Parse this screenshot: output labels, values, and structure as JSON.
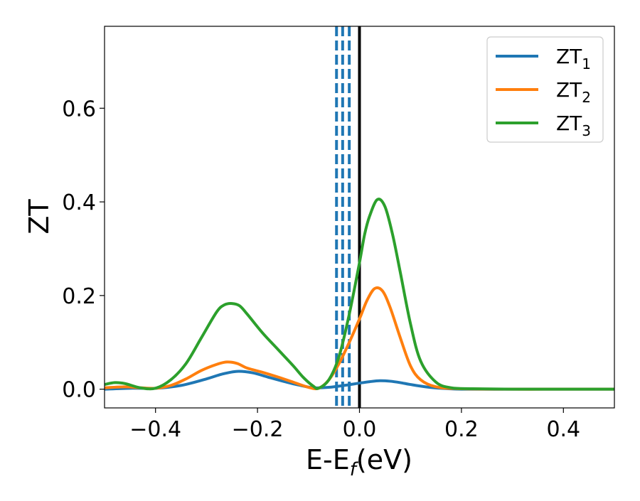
{
  "chart_data": {
    "type": "line",
    "xlabel": "E-E",
    "xlabel_sub": "f",
    "xlabel_unit": "(eV)",
    "ylabel": "ZT",
    "xlim": [
      -0.5,
      0.5
    ],
    "ylim": [
      -0.04,
      0.775
    ],
    "xticks": [
      -0.4,
      -0.2,
      0.0,
      0.2,
      0.4
    ],
    "xtick_labels": [
      "−0.4",
      "−0.2",
      "0.0",
      "0.2",
      "0.4"
    ],
    "yticks": [
      0.0,
      0.2,
      0.4,
      0.6
    ],
    "ytick_labels": [
      "0.0",
      "0.2",
      "0.4",
      "0.6"
    ],
    "grid": false,
    "legend_position": "top-right",
    "series": [
      {
        "name": "ZT",
        "name_sub": "1",
        "color": "#1f77b4",
        "x": [
          -0.5,
          -0.45,
          -0.4,
          -0.35,
          -0.3,
          -0.27,
          -0.24,
          -0.21,
          -0.18,
          -0.15,
          -0.12,
          -0.09,
          -0.06,
          -0.03,
          0.0,
          0.02,
          0.04,
          0.06,
          0.08,
          0.1,
          0.13,
          0.16,
          0.2,
          0.3,
          0.4,
          0.5
        ],
        "y": [
          0.0,
          0.002,
          0.002,
          0.008,
          0.022,
          0.032,
          0.038,
          0.035,
          0.026,
          0.017,
          0.009,
          0.003,
          0.004,
          0.008,
          0.013,
          0.016,
          0.018,
          0.017,
          0.014,
          0.01,
          0.005,
          0.002,
          0.0,
          0.0,
          0.0,
          0.0
        ]
      },
      {
        "name": "ZT",
        "name_sub": "2",
        "color": "#ff7f0e",
        "x": [
          -0.5,
          -0.46,
          -0.43,
          -0.4,
          -0.37,
          -0.34,
          -0.31,
          -0.28,
          -0.26,
          -0.24,
          -0.22,
          -0.19,
          -0.16,
          -0.13,
          -0.1,
          -0.08,
          -0.06,
          -0.04,
          -0.02,
          0.0,
          0.015,
          0.03,
          0.045,
          0.06,
          0.08,
          0.1,
          0.12,
          0.15,
          0.2,
          0.3,
          0.4,
          0.5
        ],
        "y": [
          0.003,
          0.005,
          0.003,
          0.002,
          0.008,
          0.022,
          0.04,
          0.053,
          0.058,
          0.055,
          0.045,
          0.036,
          0.026,
          0.015,
          0.004,
          0.002,
          0.02,
          0.055,
          0.1,
          0.15,
          0.19,
          0.215,
          0.21,
          0.175,
          0.11,
          0.05,
          0.02,
          0.005,
          0.001,
          0.0,
          0.0,
          0.0
        ]
      },
      {
        "name": "ZT",
        "name_sub": "3",
        "color": "#2ca02c",
        "x": [
          -0.5,
          -0.48,
          -0.46,
          -0.43,
          -0.4,
          -0.37,
          -0.34,
          -0.31,
          -0.28,
          -0.265,
          -0.25,
          -0.235,
          -0.22,
          -0.19,
          -0.16,
          -0.13,
          -0.11,
          -0.09,
          -0.08,
          -0.06,
          -0.04,
          -0.02,
          0.0,
          0.01,
          0.02,
          0.035,
          0.05,
          0.065,
          0.08,
          0.1,
          0.12,
          0.15,
          0.18,
          0.22,
          0.3,
          0.4,
          0.5
        ],
        "y": [
          0.01,
          0.014,
          0.012,
          0.003,
          0.002,
          0.02,
          0.055,
          0.11,
          0.165,
          0.18,
          0.183,
          0.178,
          0.16,
          0.12,
          0.085,
          0.05,
          0.025,
          0.006,
          0.002,
          0.02,
          0.07,
          0.16,
          0.27,
          0.33,
          0.37,
          0.405,
          0.39,
          0.33,
          0.25,
          0.14,
          0.06,
          0.015,
          0.003,
          0.001,
          0.0,
          0.0,
          0.0
        ]
      }
    ],
    "vertical_lines": [
      {
        "x": -0.045,
        "color": "#1f77b4",
        "style": "dashed"
      },
      {
        "x": -0.033,
        "color": "#1f77b4",
        "style": "dashed"
      },
      {
        "x": -0.02,
        "color": "#1f77b4",
        "style": "dashed"
      },
      {
        "x": 0.0,
        "color": "#000000",
        "style": "solid"
      }
    ]
  }
}
